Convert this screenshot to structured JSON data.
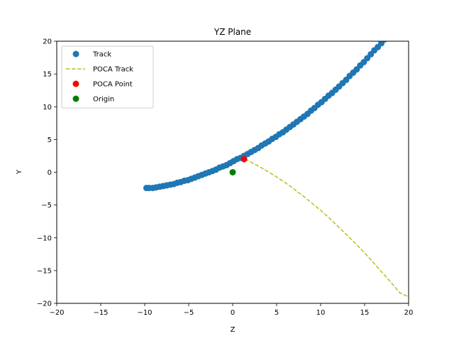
{
  "chart_data": {
    "type": "scatter",
    "title": "YZ Plane",
    "xlabel": "Z",
    "ylabel": "Y",
    "xlim": [
      -20,
      20
    ],
    "ylim": [
      -20,
      20
    ],
    "xticks": [
      -20,
      -15,
      -10,
      -5,
      0,
      5,
      10,
      15,
      20
    ],
    "yticks": [
      -20,
      -15,
      -10,
      -5,
      0,
      5,
      10,
      15,
      20
    ],
    "xtick_labels": [
      "−20",
      "−15",
      "−10",
      "−5",
      "0",
      "5",
      "10",
      "15",
      "20"
    ],
    "ytick_labels": [
      "−20",
      "−15",
      "−10",
      "−5",
      "0",
      "5",
      "10",
      "15",
      "20"
    ],
    "grid": false,
    "legend_position": "upper-left",
    "series": [
      {
        "name": "Track",
        "kind": "scatter",
        "color": "#1f77b4",
        "x": [
          -9.8,
          -9.5,
          -9.1,
          -8.7,
          -8.3,
          -7.9,
          -7.5,
          -7.1,
          -6.7,
          -6.3,
          -5.9,
          -5.5,
          -5.1,
          -4.7,
          -4.3,
          -3.9,
          -3.5,
          -3.1,
          -2.7,
          -2.3,
          -1.9,
          -1.5,
          -1.1,
          -0.7,
          -0.3,
          0.1,
          0.5,
          0.9,
          1.3,
          1.7,
          2.1,
          2.5,
          2.9,
          3.3,
          3.7,
          4.1,
          4.5,
          4.9,
          5.3,
          5.7,
          6.1,
          6.5,
          6.9,
          7.3,
          7.7,
          8.1,
          8.5,
          8.9,
          9.3,
          9.7,
          10.1,
          10.5,
          10.9,
          11.3,
          11.7,
          12.1,
          12.5,
          12.9,
          13.3,
          13.7,
          14.1,
          14.5,
          14.9,
          15.3,
          15.7,
          16.1,
          16.5,
          16.9,
          17.3,
          17.7,
          18.1
        ],
        "y": [
          -2.4,
          -2.4,
          -2.4,
          -2.3,
          -2.2,
          -2.1,
          -2.0,
          -1.9,
          -1.8,
          -1.6,
          -1.5,
          -1.3,
          -1.2,
          -1.0,
          -0.8,
          -0.6,
          -0.4,
          -0.2,
          0.0,
          0.2,
          0.4,
          0.7,
          0.9,
          1.1,
          1.4,
          1.7,
          2.0,
          2.2,
          2.5,
          2.8,
          3.1,
          3.4,
          3.7,
          4.1,
          4.4,
          4.7,
          5.1,
          5.4,
          5.8,
          6.1,
          6.5,
          6.9,
          7.3,
          7.7,
          8.1,
          8.5,
          8.9,
          9.4,
          9.8,
          10.3,
          10.7,
          11.2,
          11.7,
          12.1,
          12.6,
          13.1,
          13.6,
          14.1,
          14.7,
          15.2,
          15.7,
          16.3,
          16.8,
          17.4,
          18.0,
          18.6,
          19.1,
          19.7,
          20.3,
          20.9,
          21.5
        ]
      },
      {
        "name": "POCA Track",
        "kind": "line",
        "color": "#bcbd22",
        "dash": "dashed",
        "x": [
          1.4,
          2,
          3,
          4,
          5,
          6,
          7,
          8,
          9,
          10,
          11,
          12,
          13,
          14,
          15,
          16,
          17,
          18,
          19,
          20
        ],
        "y": [
          2.0,
          1.6,
          0.9,
          0.1,
          -0.7,
          -1.6,
          -2.6,
          -3.6,
          -4.7,
          -5.8,
          -7.0,
          -8.3,
          -9.6,
          -10.9,
          -12.3,
          -13.8,
          -15.3,
          -16.8,
          -18.4,
          -19.0
        ]
      },
      {
        "name": "POCA Point",
        "kind": "scatter",
        "color": "#ff0000",
        "x": [
          1.3
        ],
        "y": [
          2.0
        ]
      },
      {
        "name": "Origin",
        "kind": "scatter",
        "color": "#008000",
        "x": [
          0
        ],
        "y": [
          0
        ]
      }
    ]
  }
}
